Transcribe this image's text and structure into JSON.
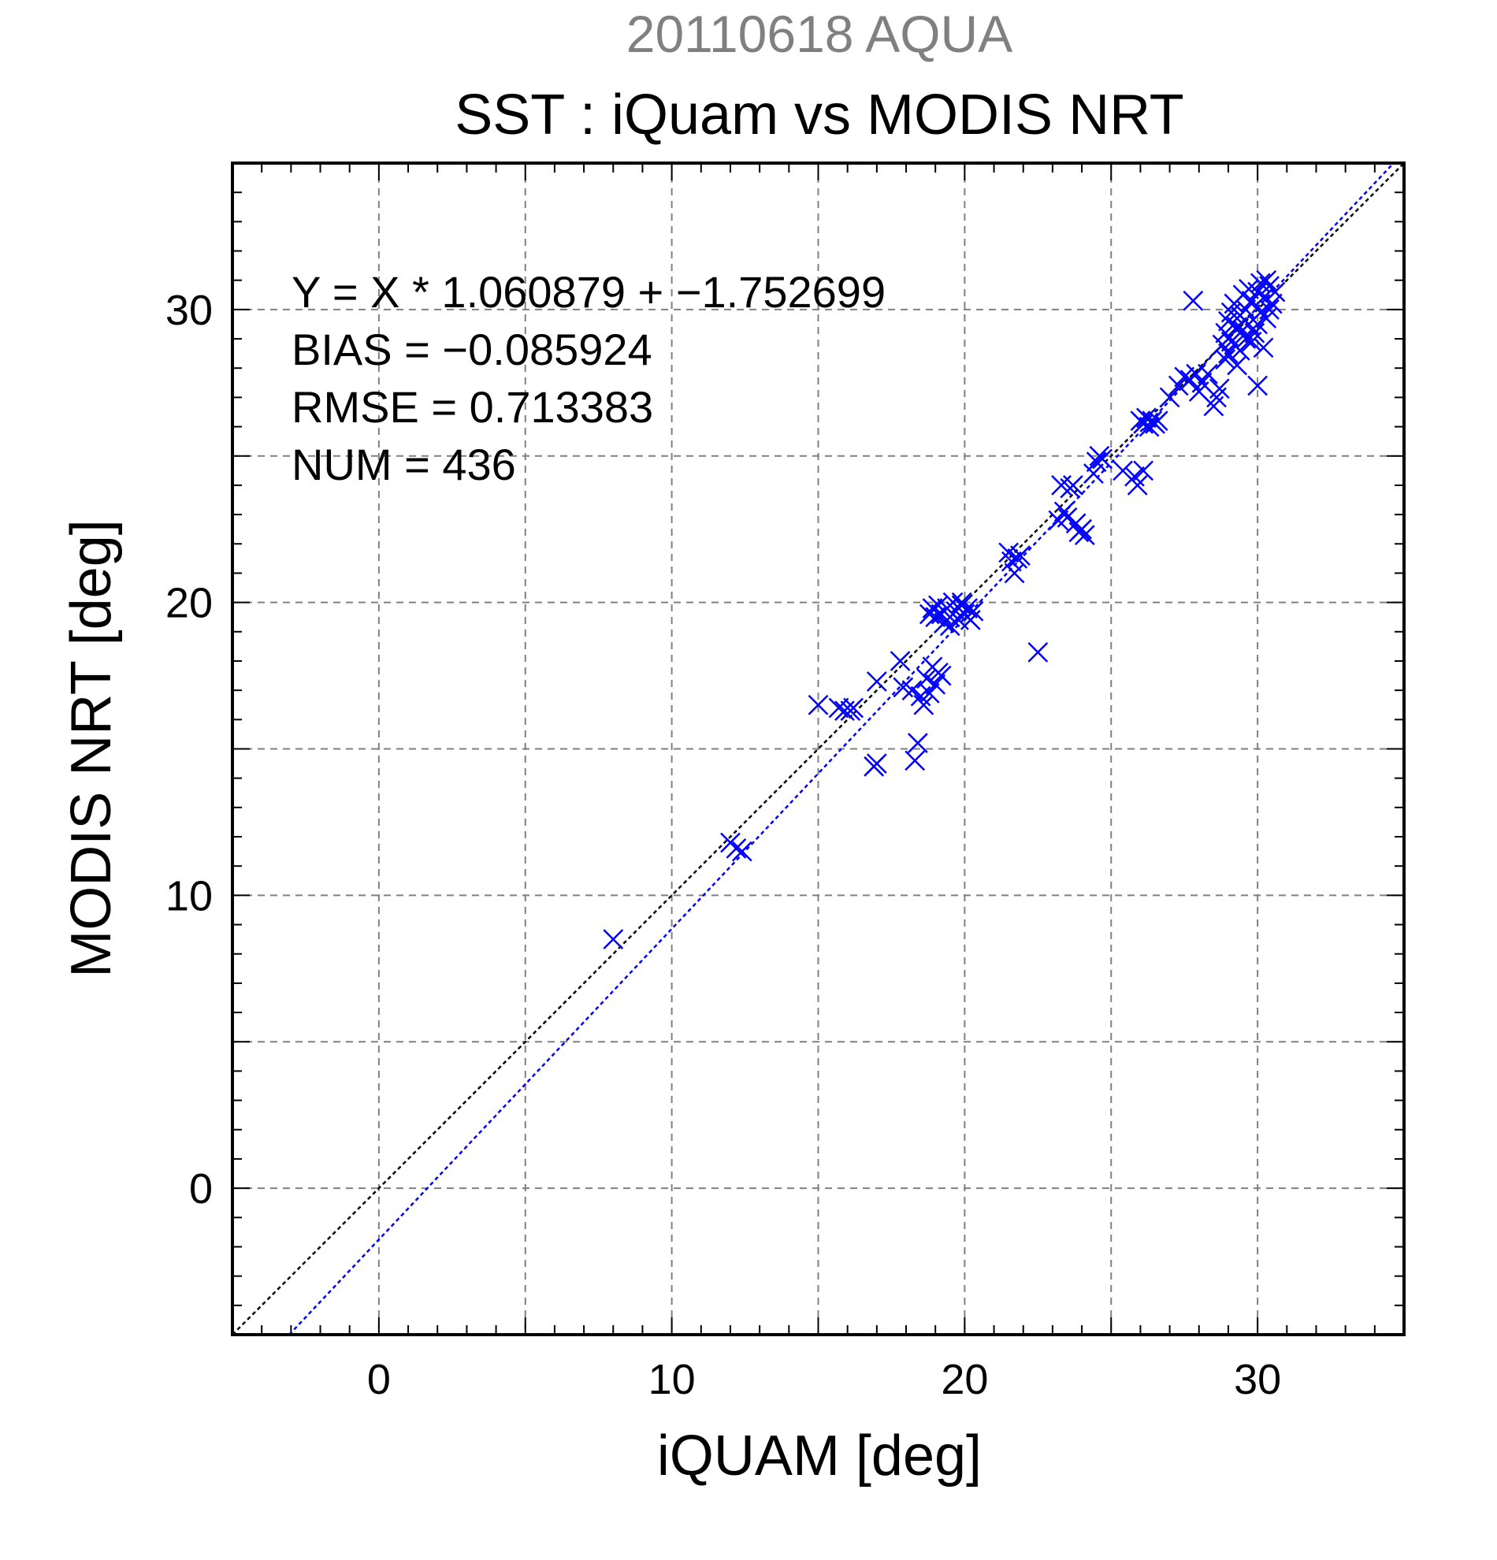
{
  "chart_data": {
    "type": "scatter",
    "title_top": "20110618 AQUA",
    "title": "SST : iQuam vs MODIS NRT",
    "xlabel": "iQUAM [deg]",
    "ylabel": "MODIS NRT [deg]",
    "xlim": [
      -5,
      35
    ],
    "ylim": [
      -5,
      35
    ],
    "xticks": [
      0,
      10,
      20,
      30
    ],
    "yticks": [
      0,
      10,
      20,
      30
    ],
    "xtick_labels": [
      "0",
      "10",
      "20",
      "30"
    ],
    "ytick_labels": [
      "0",
      "10",
      "20",
      "30"
    ],
    "grid": true,
    "stats": {
      "equation": "Y = X * 1.060879 + −1.752699",
      "bias": "BIAS = −0.085924",
      "rmse": "RMSE = 0.713383",
      "num": "NUM = 436"
    },
    "lines": [
      {
        "name": "1:1",
        "slope": 1.0,
        "intercept": 0.0,
        "color": "#000000"
      },
      {
        "name": "fit",
        "slope": 1.060879,
        "intercept": -1.752699,
        "color": "#0000ff"
      }
    ],
    "marker_color": "#0000ff",
    "marker": "x",
    "points": [
      [
        8.0,
        8.5
      ],
      [
        12.0,
        11.8
      ],
      [
        12.2,
        11.6
      ],
      [
        12.4,
        11.5
      ],
      [
        15.0,
        16.5
      ],
      [
        15.7,
        16.4
      ],
      [
        15.9,
        16.3
      ],
      [
        16.1,
        16.3
      ],
      [
        16.2,
        16.4
      ],
      [
        17.0,
        17.3
      ],
      [
        16.9,
        14.4
      ],
      [
        17.0,
        14.5
      ],
      [
        17.8,
        18.0
      ],
      [
        17.9,
        17.1
      ],
      [
        18.2,
        17.0
      ],
      [
        18.3,
        14.6
      ],
      [
        18.4,
        15.2
      ],
      [
        18.5,
        16.8
      ],
      [
        18.6,
        16.5
      ],
      [
        18.7,
        17.4
      ],
      [
        18.8,
        16.9
      ],
      [
        18.9,
        17.8
      ],
      [
        19.0,
        17.2
      ],
      [
        19.1,
        17.6
      ],
      [
        19.2,
        17.5
      ],
      [
        18.9,
        19.8
      ],
      [
        19.0,
        19.5
      ],
      [
        19.1,
        19.9
      ],
      [
        19.2,
        19.6
      ],
      [
        19.3,
        19.3
      ],
      [
        19.4,
        19.8
      ],
      [
        19.5,
        19.5
      ],
      [
        19.6,
        20.0
      ],
      [
        19.7,
        19.7
      ],
      [
        19.8,
        19.4
      ],
      [
        19.9,
        19.9
      ],
      [
        20.0,
        19.6
      ],
      [
        20.1,
        19.8
      ],
      [
        20.2,
        19.4
      ],
      [
        20.3,
        19.7
      ],
      [
        18.8,
        19.6
      ],
      [
        19.5,
        19.2
      ],
      [
        19.9,
        20.0
      ],
      [
        21.5,
        21.7
      ],
      [
        21.6,
        21.4
      ],
      [
        21.7,
        21.0
      ],
      [
        21.8,
        21.5
      ],
      [
        21.9,
        21.6
      ],
      [
        22.5,
        18.3
      ],
      [
        23.2,
        22.8
      ],
      [
        23.3,
        24.0
      ],
      [
        23.4,
        23.1
      ],
      [
        23.5,
        22.9
      ],
      [
        23.6,
        23.9
      ],
      [
        23.7,
        24.0
      ],
      [
        23.8,
        22.7
      ],
      [
        23.9,
        22.4
      ],
      [
        24.0,
        22.5
      ],
      [
        24.1,
        22.3
      ],
      [
        24.4,
        24.4
      ],
      [
        24.5,
        24.8
      ],
      [
        24.6,
        25.0
      ],
      [
        24.7,
        24.9
      ],
      [
        25.4,
        24.5
      ],
      [
        25.8,
        24.3
      ],
      [
        25.9,
        24.0
      ],
      [
        26.1,
        24.5
      ],
      [
        26.0,
        26.2
      ],
      [
        26.1,
        26.1
      ],
      [
        26.2,
        26.3
      ],
      [
        26.3,
        26.0
      ],
      [
        26.4,
        26.2
      ],
      [
        26.5,
        26.1
      ],
      [
        26.6,
        26.2
      ],
      [
        27.0,
        27.0
      ],
      [
        27.3,
        27.4
      ],
      [
        27.5,
        27.7
      ],
      [
        27.7,
        27.6
      ],
      [
        27.8,
        30.3
      ],
      [
        27.9,
        27.8
      ],
      [
        28.0,
        27.2
      ],
      [
        28.1,
        27.5
      ],
      [
        28.3,
        27.8
      ],
      [
        28.5,
        26.7
      ],
      [
        28.6,
        27.0
      ],
      [
        28.7,
        27.3
      ],
      [
        28.8,
        28.8
      ],
      [
        28.9,
        29.2
      ],
      [
        29.0,
        28.5
      ],
      [
        29.0,
        29.6
      ],
      [
        29.1,
        28.9
      ],
      [
        29.2,
        30.2
      ],
      [
        29.3,
        29.4
      ],
      [
        29.3,
        28.1
      ],
      [
        29.4,
        29.8
      ],
      [
        29.5,
        30.5
      ],
      [
        29.6,
        29.0
      ],
      [
        29.6,
        30.0
      ],
      [
        29.7,
        29.5
      ],
      [
        29.8,
        30.3
      ],
      [
        29.9,
        29.2
      ],
      [
        30.0,
        27.4
      ],
      [
        30.0,
        30.6
      ],
      [
        30.1,
        29.9
      ],
      [
        30.2,
        28.7
      ],
      [
        30.2,
        30.4
      ],
      [
        30.3,
        29.7
      ],
      [
        30.4,
        30.8
      ],
      [
        30.5,
        30.2
      ],
      [
        30.6,
        30.6
      ],
      [
        29.4,
        28.6
      ],
      [
        29.8,
        28.9
      ],
      [
        30.1,
        30.9
      ],
      [
        29.1,
        29.9
      ],
      [
        29.5,
        29.3
      ],
      [
        30.3,
        31.0
      ],
      [
        29.7,
        30.7
      ],
      [
        28.9,
        28.3
      ],
      [
        30.0,
        29.5
      ],
      [
        30.4,
        30.0
      ],
      [
        29.2,
        28.8
      ]
    ]
  }
}
